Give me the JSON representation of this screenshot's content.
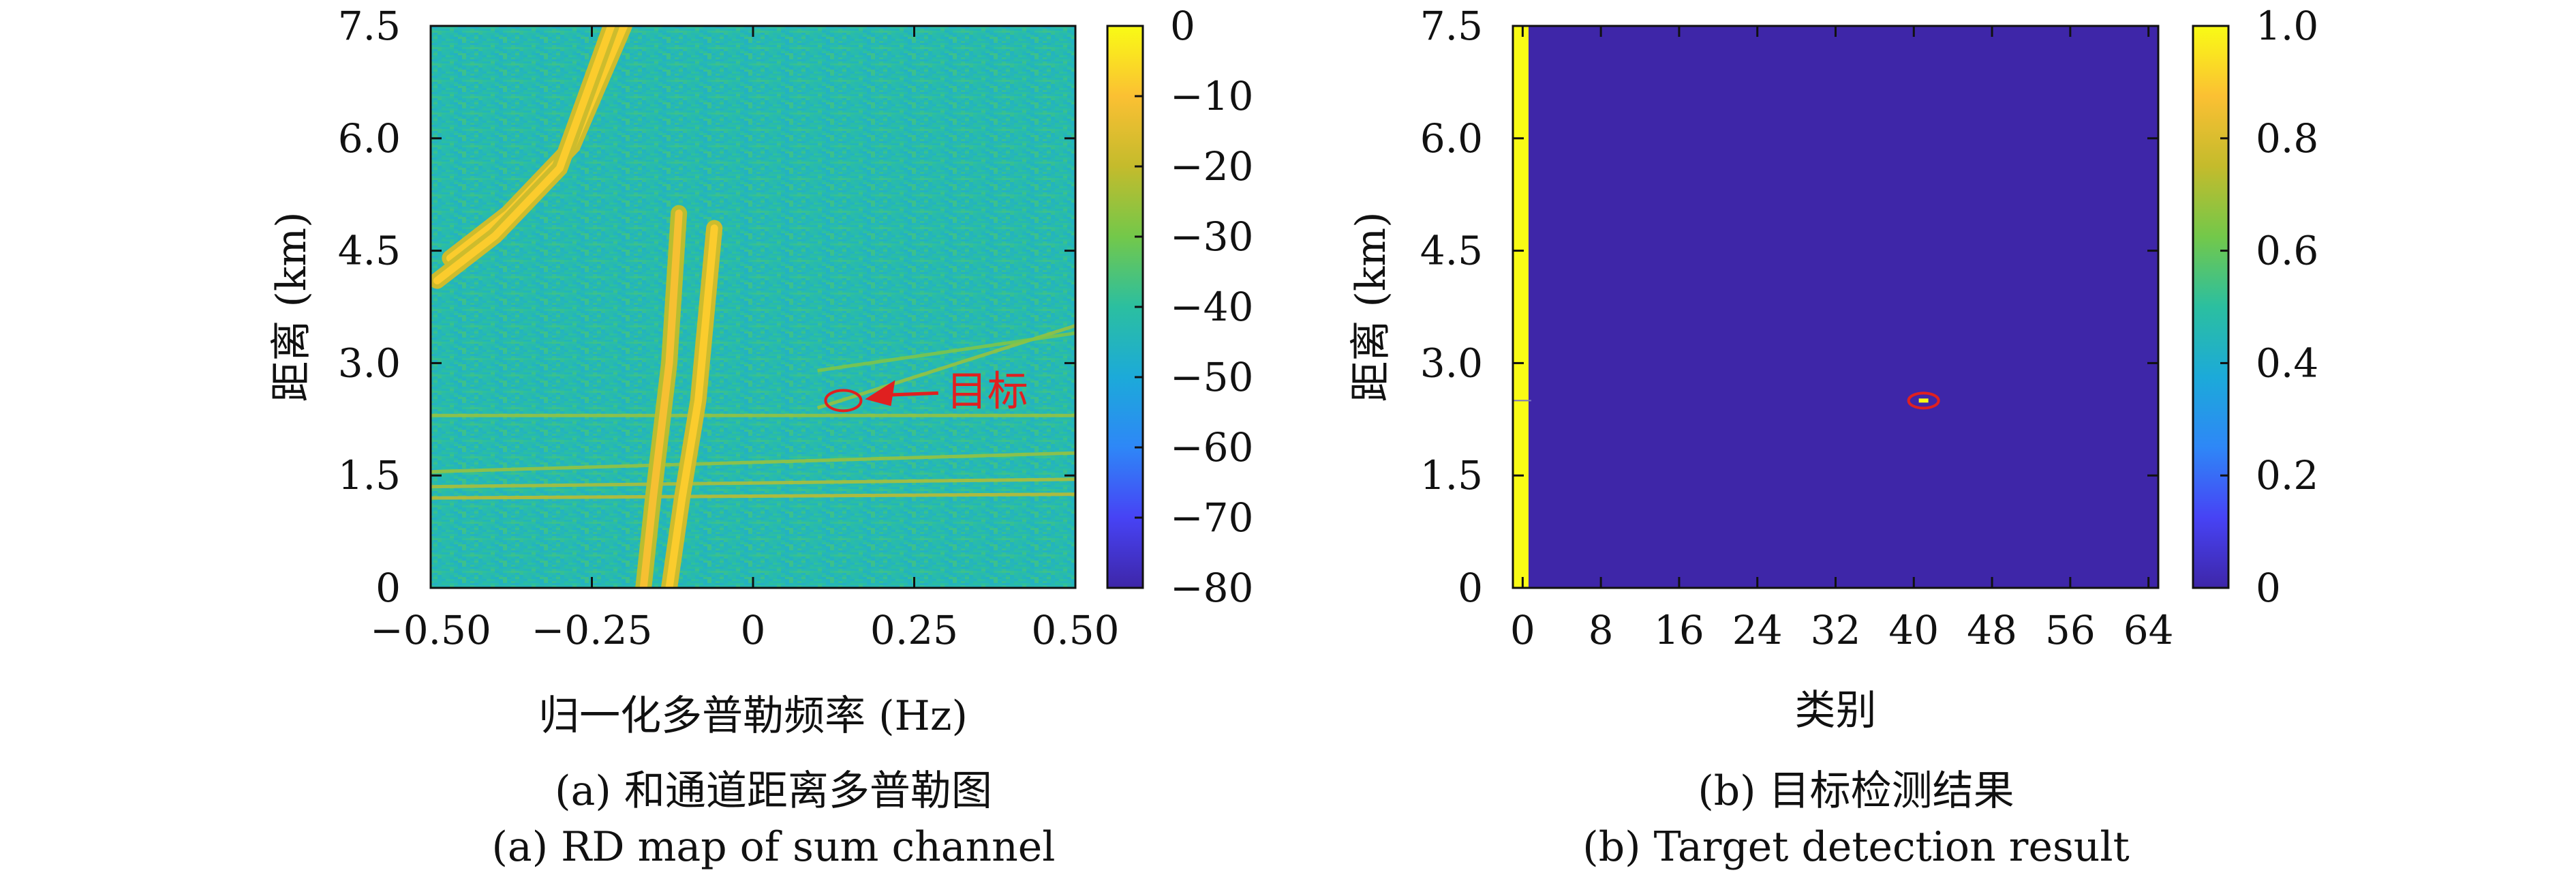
{
  "chart_data": [
    {
      "type": "heatmap",
      "caption_cn": "(a) 和通道距离多普勒图",
      "caption_en": "(a) RD map of sum channel",
      "xlabel": "归一化多普勒频率 (Hz)",
      "ylabel": "距离 (km)",
      "xlim": [
        -0.5,
        0.5
      ],
      "ylim": [
        0,
        7.5
      ],
      "x_ticks": [
        -0.5,
        -0.25,
        0,
        0.25,
        0.5
      ],
      "x_tick_labels": [
        "−0.50",
        "−0.25",
        "0",
        "0.25",
        "0.50"
      ],
      "y_ticks": [
        0,
        1.5,
        3.0,
        4.5,
        6.0,
        7.5
      ],
      "y_tick_labels": [
        "0",
        "1.5",
        "3.0",
        "4.5",
        "6.0",
        "7.5"
      ],
      "colorbar": {
        "range": [
          -80,
          0
        ],
        "ticks": [
          0,
          -10,
          -20,
          -30,
          -40,
          -50,
          -60,
          -70,
          -80
        ],
        "tick_labels": [
          "0",
          "−10",
          "−20",
          "−30",
          "−40",
          "−50",
          "−60",
          "−70",
          "−80"
        ]
      },
      "background_level": -40,
      "clutter_ridges": [
        {
          "points": [
            [
              -0.17,
              0
            ],
            [
              -0.155,
              1.2
            ],
            [
              -0.13,
              3.0
            ],
            [
              -0.115,
              5.0
            ]
          ],
          "level": -15
        },
        {
          "points": [
            [
              -0.13,
              0
            ],
            [
              -0.11,
              1.2
            ],
            [
              -0.085,
              2.5
            ],
            [
              -0.06,
              4.8
            ]
          ],
          "level": -12
        },
        {
          "points": [
            [
              -0.47,
              4.4
            ],
            [
              -0.38,
              5.0
            ],
            [
              -0.28,
              5.9
            ],
            [
              -0.2,
              7.5
            ]
          ],
          "level": -12
        },
        {
          "points": [
            [
              -0.49,
              4.1
            ],
            [
              -0.4,
              4.7
            ],
            [
              -0.3,
              5.6
            ],
            [
              -0.22,
              7.5
            ]
          ],
          "level": -12
        }
      ],
      "horizontal_lines": [
        {
          "points": [
            [
              -0.5,
              1.2
            ],
            [
              0.5,
              1.25
            ]
          ],
          "level": -20
        },
        {
          "points": [
            [
              -0.5,
              1.35
            ],
            [
              0.5,
              1.45
            ]
          ],
          "level": -22
        },
        {
          "points": [
            [
              -0.5,
              1.55
            ],
            [
              0.5,
              1.8
            ]
          ],
          "level": -25
        },
        {
          "points": [
            [
              -0.5,
              2.3
            ],
            [
              0.5,
              2.3
            ]
          ],
          "level": -25
        },
        {
          "points": [
            [
              0.1,
              2.4
            ],
            [
              0.5,
              3.5
            ]
          ],
          "level": -25
        },
        {
          "points": [
            [
              0.1,
              2.9
            ],
            [
              0.5,
              3.4
            ]
          ],
          "level": -28
        }
      ],
      "target": {
        "x": 0.14,
        "y": 2.5,
        "label": "目标",
        "label_x": 0.3,
        "label_y": 2.8
      }
    },
    {
      "type": "heatmap",
      "caption_cn": "(b) 目标检测结果",
      "caption_en": "(b) Target detection result",
      "xlabel": "类别",
      "ylabel": "距离 (km)",
      "xlim": [
        -1,
        65
      ],
      "ylim": [
        0,
        7.5
      ],
      "x_ticks": [
        0,
        8,
        16,
        24,
        32,
        40,
        48,
        56,
        64
      ],
      "x_tick_labels": [
        "0",
        "8",
        "16",
        "24",
        "32",
        "40",
        "48",
        "56",
        "64"
      ],
      "y_ticks": [
        0,
        1.5,
        3.0,
        4.5,
        6.0,
        7.5
      ],
      "y_tick_labels": [
        "0",
        "1.5",
        "3.0",
        "4.5",
        "6.0",
        "7.5"
      ],
      "colorbar": {
        "range": [
          0,
          1
        ],
        "ticks": [
          1.0,
          0.8,
          0.6,
          0.4,
          0.2,
          0
        ],
        "tick_labels": [
          "1.0",
          "0.8",
          "0.6",
          "0.4",
          "0.2",
          "0"
        ]
      },
      "background_value": 0,
      "active_column": {
        "x": 0,
        "value": 1
      },
      "target": {
        "x": 41,
        "y": 2.5,
        "value": 1
      }
    }
  ],
  "colors": {
    "parula": [
      "#3e26a8",
      "#4743f5",
      "#2e87f7",
      "#1caad9",
      "#2bbfa0",
      "#73c84a",
      "#c4bb2c",
      "#fbc033",
      "#f9fb15"
    ],
    "annotation": "#e02020"
  }
}
